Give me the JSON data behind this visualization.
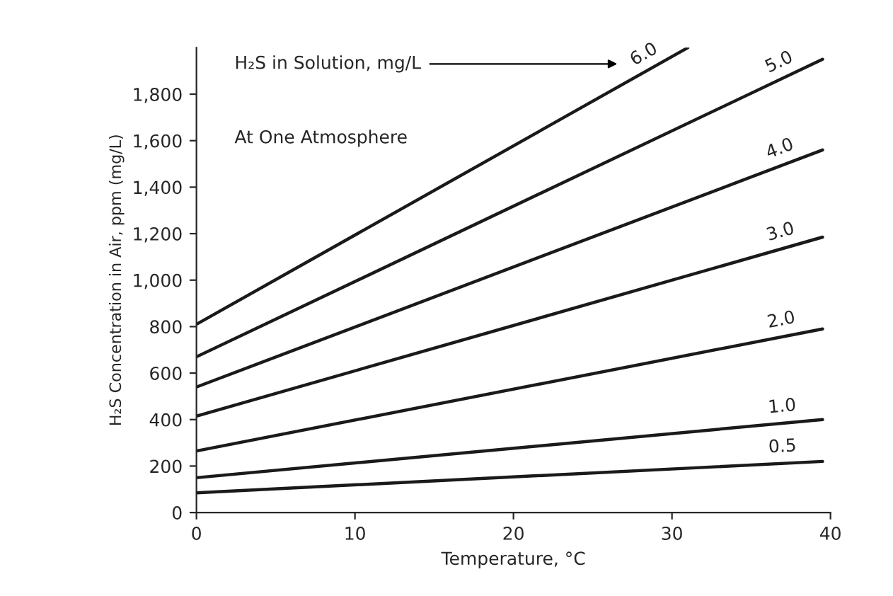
{
  "chart_data": {
    "type": "line",
    "xlabel": "Temperature, °C",
    "ylabel": "H₂S Concentration in Air, ppm (mg/L)",
    "annotations": [
      "H₂S in Solution, mg/L",
      "At One Atmosphere"
    ],
    "xlim": [
      0,
      40
    ],
    "xticks": [
      0,
      10,
      20,
      30,
      40
    ],
    "ylim": [
      0,
      2000
    ],
    "yticks": [
      0,
      200,
      400,
      600,
      800,
      {
        "value": 1000,
        "label": "1,000"
      },
      {
        "value": 1200,
        "label": "1,200"
      },
      {
        "value": 1400,
        "label": "1,400"
      },
      {
        "value": 1600,
        "label": "1,600"
      },
      {
        "value": 1800,
        "label": "1,800"
      }
    ],
    "grid": false,
    "legend": false,
    "marker": "none",
    "line_style": "solid",
    "series": [
      {
        "name": "6.0",
        "color": "#1a1a1a",
        "x": [
          0,
          31
        ],
        "values": [
          810,
          2000
        ]
      },
      {
        "name": "5.0",
        "color": "#1a1a1a",
        "x": [
          0,
          39.5
        ],
        "values": [
          670,
          1950
        ]
      },
      {
        "name": "4.0",
        "color": "#1a1a1a",
        "x": [
          0,
          39.5
        ],
        "values": [
          540,
          1560
        ]
      },
      {
        "name": "3.0",
        "color": "#1a1a1a",
        "x": [
          0,
          39.5
        ],
        "values": [
          415,
          1185
        ]
      },
      {
        "name": "2.0",
        "color": "#1a1a1a",
        "x": [
          0,
          39.5
        ],
        "values": [
          265,
          790
        ]
      },
      {
        "name": "1.0",
        "color": "#1a1a1a",
        "x": [
          0,
          39.5
        ],
        "values": [
          150,
          400
        ]
      },
      {
        "name": "0.5",
        "color": "#1a1a1a",
        "x": [
          0,
          39.5
        ],
        "values": [
          85,
          220
        ]
      }
    ]
  }
}
